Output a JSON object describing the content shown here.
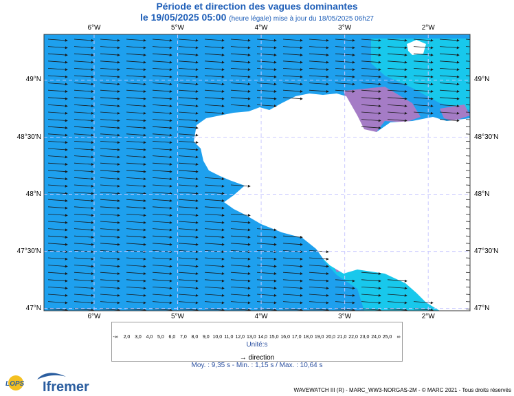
{
  "title": "Période et direction des vagues dominantes",
  "subtitle": {
    "date": "le 19/05/2025 05:00",
    "detail": "(heure légale) mise à jour du 18/05/2025 06h27"
  },
  "map": {
    "lon_labels": [
      "6°W",
      "5°W",
      "4°W",
      "3°W",
      "2°W"
    ],
    "lat_labels": [
      "49°N",
      "48°30'N",
      "48°N",
      "47°30'N",
      "47°N"
    ],
    "lon_range": [
      -6.6,
      -1.5
    ],
    "lat_range": [
      46.98,
      49.4
    ],
    "colors": {
      "sea": "#1ea0ee",
      "sea_light": "#18c8ec",
      "land": "#ffffff",
      "purple": "#a57cc6",
      "arrow": "#1a1a1a",
      "grid": "#c8c8ff"
    }
  },
  "legend": {
    "ticks": [
      "-∞",
      "2,0",
      "3,0",
      "4,0",
      "5,0",
      "6,0",
      "7,0",
      "8,0",
      "9,0",
      "10,0",
      "11,0",
      "12,0",
      "13,0",
      "14,0",
      "15,0",
      "16,0",
      "17,0",
      "18,0",
      "19,0",
      "20,0",
      "21,0",
      "22,0",
      "23,0",
      "24,0",
      "25,0",
      "∞"
    ],
    "colors": [
      "#b08cc8",
      "#9a5ad0",
      "#6a2be0",
      "#3a2af0",
      "#2a45f2",
      "#2760f4",
      "#2a88f2",
      "#22a8ee",
      "#18c8ea",
      "#10e0d8",
      "#22e8a0",
      "#44e060",
      "#78e030",
      "#a8e830",
      "#dcec28",
      "#f6e020",
      "#f8c018",
      "#f8a018",
      "#f68014",
      "#f46012",
      "#f04010",
      "#e8200e",
      "#d8100c",
      "#c8100a"
    ],
    "unit": "Unité:s",
    "direction_label": "direction"
  },
  "stats": "Moy. : 9,35 s   -   Min. : 1,15 s / Max. : 10,64 s",
  "credits": "WAVEWATCH III (R) - MARC_WW3-NORGAS-2M - © MARC 2021 - Tous droits réservés",
  "logos": {
    "lops": "LOPS",
    "ifremer": "Ifremer"
  }
}
